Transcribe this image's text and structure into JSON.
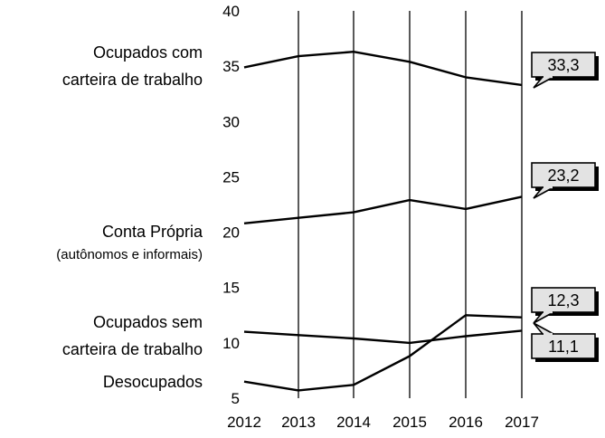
{
  "chart_data": {
    "type": "line",
    "x": [
      "2012",
      "2013",
      "2014",
      "2015",
      "2016",
      "2017"
    ],
    "ylim": [
      5,
      40
    ],
    "yticks": [
      5,
      10,
      15,
      20,
      25,
      30,
      35,
      40
    ],
    "grid": "vertical lines at each year",
    "series": [
      {
        "name_lines": [
          "Ocupados com",
          "carteira de trabalho"
        ],
        "values": [
          34.9,
          35.9,
          36.3,
          35.4,
          34.0,
          33.3
        ],
        "callout": "33,3"
      },
      {
        "name_lines": [
          "Conta Própria",
          "(autônomos e informais)"
        ],
        "values": [
          20.8,
          21.3,
          21.8,
          22.9,
          22.1,
          23.2
        ],
        "callout": "23,2"
      },
      {
        "name_lines": [
          "Ocupados sem",
          "carteira de trabalho"
        ],
        "values": [
          11.0,
          10.7,
          10.4,
          10.0,
          10.6,
          11.1
        ],
        "callout": "11,1"
      },
      {
        "name_lines": [
          "Desocupados"
        ],
        "values": [
          6.5,
          5.7,
          6.2,
          8.8,
          12.5,
          12.3
        ],
        "callout": "12,3"
      }
    ]
  }
}
